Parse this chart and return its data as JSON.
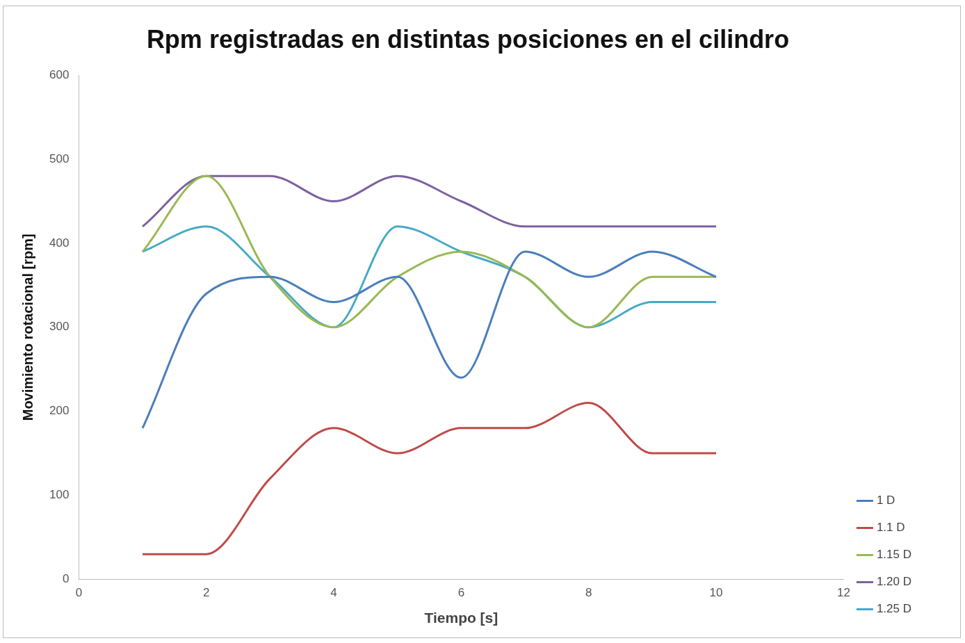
{
  "chart_data": {
    "type": "line",
    "title": "Rpm registradas en distintas posiciones en el cilindro",
    "xlabel": "Tiempo [s]",
    "ylabel": "Movimiento rotacional [rpm]",
    "x": [
      1,
      2,
      3,
      4,
      5,
      6,
      7,
      8,
      9,
      10
    ],
    "series": [
      {
        "name": "1 D",
        "color": "#4a7ebb",
        "values": [
          180,
          340,
          360,
          330,
          360,
          240,
          390,
          360,
          390,
          360
        ]
      },
      {
        "name": "1.1 D",
        "color": "#be4b48",
        "values": [
          30,
          30,
          120,
          180,
          150,
          180,
          180,
          210,
          150,
          150
        ]
      },
      {
        "name": "1.15 D",
        "color": "#98b954",
        "values": [
          390,
          480,
          360,
          300,
          360,
          390,
          360,
          300,
          360,
          360
        ]
      },
      {
        "name": "1.20 D",
        "color": "#7d60a0",
        "values": [
          420,
          480,
          480,
          450,
          480,
          450,
          420,
          420,
          420,
          420
        ]
      },
      {
        "name": "1.25 D",
        "color": "#46aac5",
        "values": [
          390,
          420,
          360,
          300,
          420,
          390,
          360,
          300,
          330,
          330
        ]
      }
    ],
    "xlim": [
      0,
      12
    ],
    "xticks": [
      0,
      2,
      4,
      6,
      8,
      10,
      12
    ],
    "ylim": [
      0,
      600
    ],
    "yticks": [
      0,
      100,
      200,
      300,
      400,
      500,
      600
    ],
    "grid": false,
    "legend": "right",
    "marker": "none",
    "line_style": "solid"
  }
}
